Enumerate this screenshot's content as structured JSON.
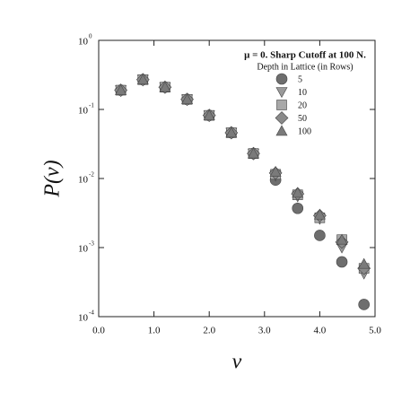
{
  "chart_data": {
    "type": "scatter",
    "log_y": true,
    "title": "μ = 0. Sharp Cutoff at 100 N.",
    "legend_title": "Depth in Lattice (in Rows)",
    "x_label": "ν",
    "y_label": "P(ν)",
    "xlim": [
      0,
      5
    ],
    "ylim": [
      0.0001,
      1
    ],
    "xticks": [
      {
        "value": 0,
        "label": "0.0"
      },
      {
        "value": 1,
        "label": "1.0"
      },
      {
        "value": 2,
        "label": "2.0"
      },
      {
        "value": 3,
        "label": "3.0"
      },
      {
        "value": 4,
        "label": "4.0"
      },
      {
        "value": 5,
        "label": "5.0"
      }
    ],
    "yticks": [
      {
        "value": 0.0001,
        "label": "10",
        "exponent": "-4"
      },
      {
        "value": 0.001,
        "label": "10",
        "exponent": "-3"
      },
      {
        "value": 0.01,
        "label": "10",
        "exponent": "-2"
      },
      {
        "value": 0.1,
        "label": "10",
        "exponent": "-1"
      },
      {
        "value": 1,
        "label": "10",
        "exponent": "0"
      }
    ],
    "x": [
      0.4,
      0.8,
      1.2,
      1.6,
      2.0,
      2.4,
      2.8,
      3.2,
      3.6,
      4.0,
      4.4,
      4.8
    ],
    "series": [
      {
        "name": "5",
        "marker": "circle",
        "color": "#6e6e6e",
        "values": [
          0.19,
          0.27,
          0.21,
          0.14,
          0.082,
          0.046,
          0.023,
          0.0095,
          0.0037,
          0.0015,
          0.00062,
          0.00015
        ]
      },
      {
        "name": "10",
        "marker": "triangle-down",
        "color": "#9a9a9a",
        "values": [
          0.19,
          0.27,
          0.21,
          0.14,
          0.082,
          0.046,
          0.023,
          0.011,
          0.0055,
          0.0026,
          0.001,
          0.00042
        ]
      },
      {
        "name": "20",
        "marker": "square",
        "color": "#a8a8a8",
        "values": [
          0.19,
          0.27,
          0.21,
          0.14,
          0.082,
          0.046,
          0.023,
          0.0115,
          0.0058,
          0.0027,
          0.0013,
          0.0005
        ]
      },
      {
        "name": "50",
        "marker": "diamond",
        "color": "#8a8a8a",
        "values": [
          0.19,
          0.27,
          0.21,
          0.14,
          0.082,
          0.046,
          0.023,
          0.012,
          0.006,
          0.0029,
          0.0012,
          0.0005
        ]
      },
      {
        "name": "100",
        "marker": "triangle-up",
        "color": "#7a7a7a",
        "values": [
          0.19,
          0.27,
          0.21,
          0.14,
          0.082,
          0.046,
          0.023,
          0.0125,
          0.0062,
          0.003,
          0.0013,
          0.00058
        ]
      }
    ]
  }
}
